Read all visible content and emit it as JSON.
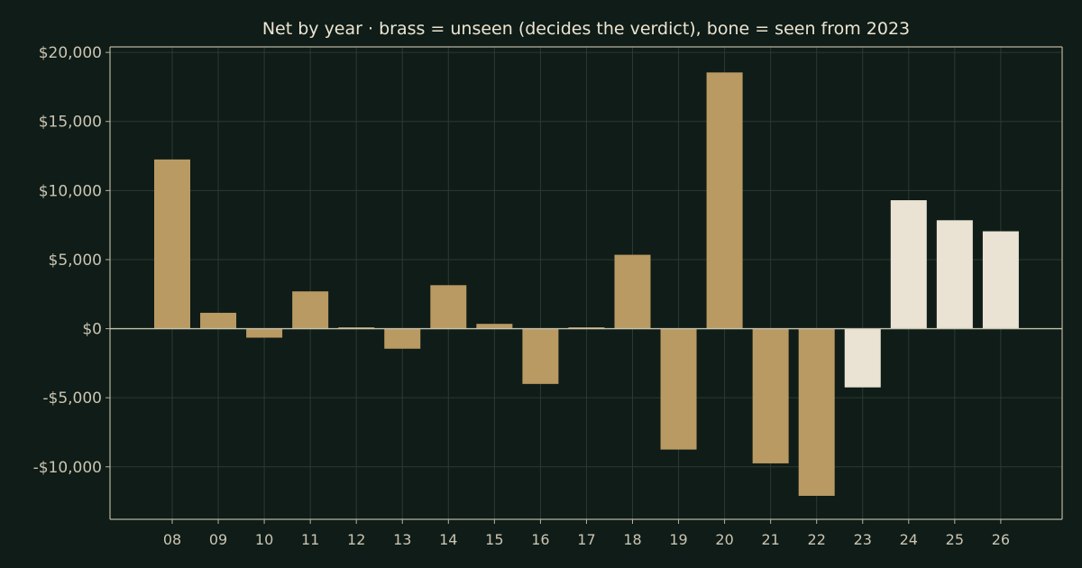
{
  "chart_data": {
    "type": "bar",
    "title": "Net by year  ·  brass = unseen (decides the verdict), bone = seen from 2023",
    "xlabel": "",
    "ylabel": "",
    "categories": [
      "08",
      "09",
      "10",
      "11",
      "12",
      "13",
      "14",
      "15",
      "16",
      "17",
      "18",
      "19",
      "20",
      "21",
      "22",
      "23",
      "24",
      "25",
      "26"
    ],
    "values": [
      12250,
      1150,
      -650,
      2700,
      100,
      -1450,
      3150,
      350,
      -4000,
      100,
      5350,
      -8750,
      18550,
      -9750,
      -12100,
      -4250,
      9300,
      7850,
      7050
    ],
    "seen": [
      false,
      false,
      false,
      false,
      false,
      false,
      false,
      false,
      false,
      false,
      false,
      false,
      false,
      false,
      false,
      true,
      true,
      true,
      true
    ],
    "ylim": [
      -13800,
      20400
    ],
    "yticks": [
      20000,
      15000,
      10000,
      5000,
      0,
      -5000,
      -10000
    ],
    "ytick_labels": [
      "$20,000",
      "$15,000",
      "$10,000",
      "$5,000",
      "$0",
      "-$5,000",
      "-$10,000"
    ],
    "grid": true,
    "legend": "none",
    "colors": {
      "background": "#0f1c17",
      "unseen_bar": "#b99a63",
      "seen_bar": "#eae3d4",
      "grid": "#2b3a32",
      "axis": "#b9b3a1",
      "text": "#cbc4b2"
    }
  }
}
